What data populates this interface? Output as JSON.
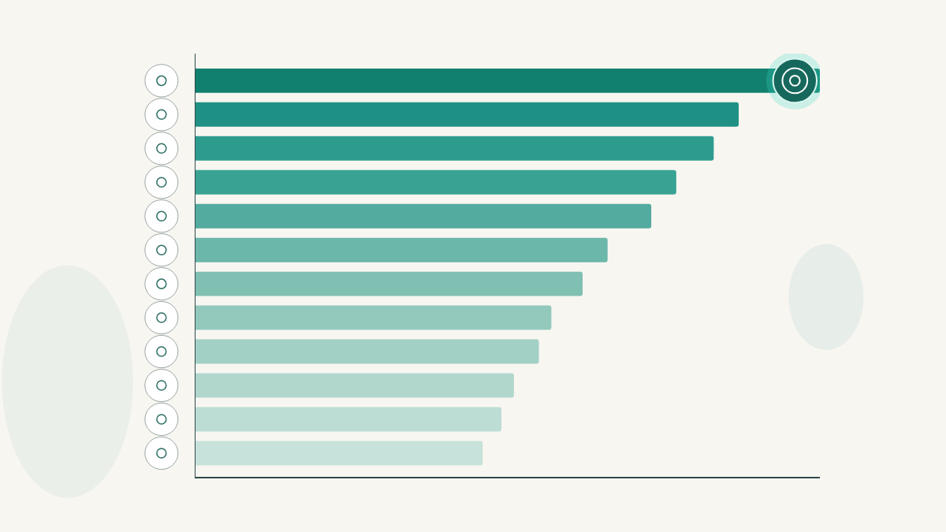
{
  "chart_data": {
    "type": "bar",
    "orientation": "horizontal",
    "categories": [
      null,
      null,
      null,
      null,
      null,
      null,
      null,
      null,
      null,
      null,
      null,
      null
    ],
    "values": [
      100,
      87,
      83,
      77,
      73,
      66,
      62,
      57,
      55,
      51,
      49,
      46
    ],
    "colors": [
      "#12806f",
      "#1f9184",
      "#2d9c8f",
      "#3aa293",
      "#52ab9e",
      "#6bb7aa",
      "#7fc0b3",
      "#93c9bd",
      "#a2d0c5",
      "#b1d7cd",
      "#bcddd4",
      "#c7e2da"
    ],
    "xlim": [
      0,
      100
    ],
    "xticks": [],
    "grid": false,
    "tick_labels": false,
    "data_labels": false
  }
}
